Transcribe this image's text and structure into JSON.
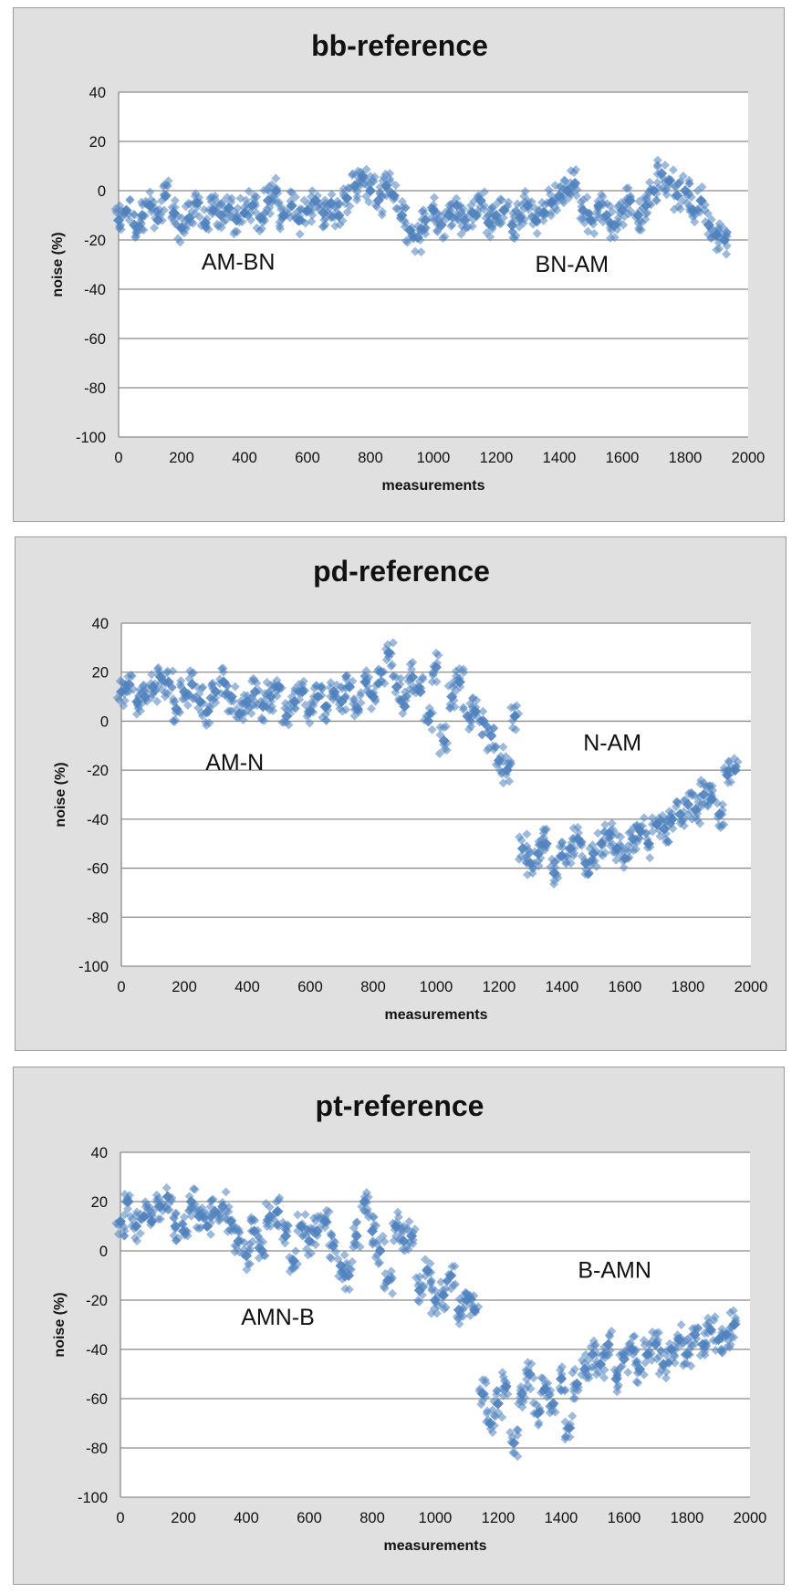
{
  "chart_data": [
    {
      "type": "scatter",
      "title": "bb-reference",
      "xlabel": "measurements",
      "ylabel": "noise (%)",
      "xlim": [
        0,
        2000
      ],
      "ylim": [
        -100,
        40
      ],
      "x_ticks": [
        "0",
        "200",
        "400",
        "600",
        "800",
        "1000",
        "1200",
        "1400",
        "1600",
        "1800",
        "2000"
      ],
      "y_ticks": [
        "40",
        "20",
        "0",
        "-20",
        "-40",
        "-60",
        "-80",
        "-100"
      ],
      "grid": "horizontal",
      "legend": "none",
      "marker_color": "#4f81bd",
      "annotations": [
        {
          "text": "AM-BN",
          "x": 380,
          "y": -32
        },
        {
          "text": "BN-AM",
          "x": 1440,
          "y": -33
        }
      ],
      "series": [
        {
          "x": [
            0,
            25,
            50,
            75,
            100,
            125,
            150,
            175,
            200,
            225,
            250,
            275,
            300,
            325,
            350,
            375,
            400,
            425,
            450,
            475,
            500,
            525,
            550,
            575,
            600,
            625,
            650,
            675,
            700,
            725,
            750,
            775,
            800,
            825,
            850,
            875,
            900,
            925,
            950,
            975,
            1000,
            1025,
            1050,
            1075,
            1100,
            1125,
            1150,
            1175,
            1200,
            1225,
            1250,
            1275,
            1300,
            1325,
            1350,
            1375,
            1400,
            1425,
            1450,
            1475,
            1500,
            1525,
            1550,
            1575,
            1600,
            1625,
            1650,
            1675,
            1700,
            1725,
            1750,
            1775,
            1800,
            1825,
            1850,
            1875,
            1900,
            1925
          ],
          "y": [
            -12,
            -8,
            -14,
            -10,
            -6,
            -12,
            -2,
            -9,
            -15,
            -11,
            -5,
            -13,
            -8,
            -10,
            -7,
            -12,
            -9,
            -6,
            -11,
            -4,
            0,
            -10,
            -6,
            -12,
            -8,
            -4,
            -9,
            -5,
            -10,
            -3,
            2,
            6,
            0,
            -4,
            2,
            -2,
            -10,
            -16,
            -19,
            -12,
            -8,
            -14,
            -10,
            -6,
            -12,
            -9,
            -4,
            -13,
            -10,
            -8,
            -14,
            -11,
            -6,
            -12,
            -9,
            -5,
            -2,
            0,
            3,
            -8,
            -12,
            -6,
            -10,
            -14,
            -8,
            -4,
            -10,
            -6,
            0,
            7,
            4,
            -2,
            0,
            -8,
            -4,
            -14,
            -18,
            -20
          ]
        }
      ]
    },
    {
      "type": "scatter",
      "title": "pd-reference",
      "xlabel": "measurements",
      "ylabel": "noise (%)",
      "xlim": [
        0,
        2000
      ],
      "ylim": [
        -100,
        40
      ],
      "x_ticks": [
        "0",
        "200",
        "400",
        "600",
        "800",
        "1000",
        "1200",
        "1400",
        "1600",
        "1800",
        "2000"
      ],
      "y_ticks": [
        "40",
        "20",
        "0",
        "-20",
        "-40",
        "-60",
        "-80",
        "-100"
      ],
      "grid": "horizontal",
      "legend": "none",
      "marker_color": "#4f81bd",
      "annotations": [
        {
          "text": "AM-N",
          "x": 360,
          "y": -20
        },
        {
          "text": "N-AM",
          "x": 1560,
          "y": -12
        }
      ],
      "series": [
        {
          "x": [
            0,
            25,
            50,
            75,
            100,
            125,
            150,
            175,
            200,
            225,
            250,
            275,
            300,
            325,
            350,
            375,
            400,
            425,
            450,
            475,
            500,
            525,
            550,
            575,
            600,
            625,
            650,
            675,
            700,
            725,
            750,
            775,
            800,
            825,
            850,
            875,
            900,
            925,
            950,
            975,
            1000,
            1025,
            1050,
            1075,
            1100,
            1125,
            1150,
            1175,
            1200,
            1225,
            1250,
            1275,
            1300,
            1325,
            1350,
            1375,
            1400,
            1425,
            1450,
            1475,
            1500,
            1525,
            1550,
            1575,
            1600,
            1625,
            1650,
            1675,
            1700,
            1725,
            1750,
            1775,
            1800,
            1825,
            1850,
            1875,
            1900,
            1925,
            1950
          ],
          "y": [
            12,
            15,
            8,
            10,
            14,
            18,
            16,
            5,
            12,
            15,
            8,
            4,
            12,
            16,
            10,
            3,
            8,
            12,
            6,
            10,
            14,
            2,
            8,
            12,
            4,
            10,
            6,
            12,
            8,
            14,
            5,
            16,
            10,
            20,
            28,
            14,
            6,
            18,
            12,
            0,
            22,
            -8,
            10,
            16,
            2,
            4,
            0,
            -6,
            -16,
            -20,
            2,
            -52,
            -58,
            -54,
            -50,
            -62,
            -55,
            -52,
            -48,
            -58,
            -54,
            -50,
            -46,
            -52,
            -56,
            -48,
            -45,
            -50,
            -42,
            -44,
            -40,
            -38,
            -34,
            -36,
            -30,
            -32,
            -38,
            -22,
            -20
          ]
        }
      ]
    },
    {
      "type": "scatter",
      "title": "pt-reference",
      "xlabel": "measurements",
      "ylabel": "noise (%)",
      "xlim": [
        0,
        2000
      ],
      "ylim": [
        -100,
        40
      ],
      "x_ticks": [
        "0",
        "200",
        "400",
        "600",
        "800",
        "1000",
        "1200",
        "1400",
        "1600",
        "1800",
        "2000"
      ],
      "y_ticks": [
        "40",
        "20",
        "0",
        "-20",
        "-40",
        "-60",
        "-80",
        "-100"
      ],
      "grid": "horizontal",
      "legend": "none",
      "marker_color": "#4f81bd",
      "annotations": [
        {
          "text": "AMN-B",
          "x": 500,
          "y": -30
        },
        {
          "text": "B-AMN",
          "x": 1570,
          "y": -11
        }
      ],
      "series": [
        {
          "x": [
            0,
            25,
            50,
            75,
            100,
            125,
            150,
            175,
            200,
            225,
            250,
            275,
            300,
            325,
            350,
            375,
            400,
            425,
            450,
            475,
            500,
            525,
            550,
            575,
            600,
            625,
            650,
            675,
            700,
            725,
            750,
            775,
            800,
            825,
            850,
            875,
            900,
            925,
            950,
            975,
            1000,
            1025,
            1050,
            1075,
            1100,
            1125,
            1150,
            1175,
            1200,
            1225,
            1250,
            1275,
            1300,
            1325,
            1350,
            1375,
            1400,
            1425,
            1450,
            1475,
            1500,
            1525,
            1550,
            1575,
            1600,
            1625,
            1650,
            1675,
            1700,
            1725,
            1750,
            1775,
            1800,
            1825,
            1850,
            1875,
            1900,
            1925,
            1950
          ],
          "y": [
            12,
            20,
            10,
            14,
            12,
            18,
            22,
            10,
            8,
            20,
            14,
            10,
            16,
            18,
            12,
            4,
            -2,
            8,
            0,
            14,
            16,
            6,
            -4,
            10,
            4,
            8,
            12,
            2,
            -6,
            -10,
            6,
            20,
            8,
            0,
            -12,
            10,
            4,
            6,
            -16,
            -8,
            -20,
            -18,
            -10,
            -24,
            -20,
            -24,
            -58,
            -70,
            -62,
            -55,
            -78,
            -58,
            -50,
            -66,
            -56,
            -62,
            -52,
            -72,
            -54,
            -48,
            -42,
            -46,
            -38,
            -52,
            -44,
            -40,
            -48,
            -42,
            -38,
            -46,
            -40,
            -36,
            -42,
            -34,
            -38,
            -32,
            -36,
            -34,
            -30
          ]
        }
      ]
    }
  ]
}
